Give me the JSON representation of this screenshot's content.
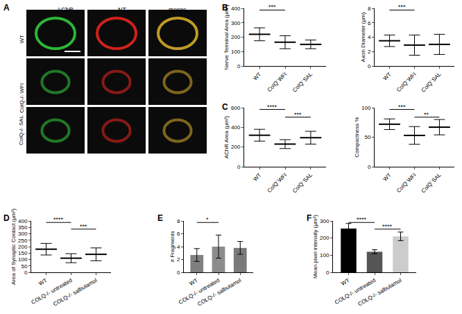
{
  "chart_data": [
    {
      "panel": "A",
      "type": "image",
      "columns": [
        "AChR",
        "NT",
        "merge"
      ],
      "rows": [
        "WT",
        "ColQ-/- WFI",
        "ColQ-/- SAL"
      ]
    },
    {
      "panel": "B",
      "type": "scatter",
      "ylabel": "Nerve Terminal Area (μm²)",
      "categories": [
        "WT",
        "ColQ⁻WFI",
        "ColQ⁻SAL"
      ],
      "values": [
        220,
        165,
        150
      ],
      "errors": [
        45,
        45,
        30
      ],
      "color": "#000000",
      "marker": "line-ew",
      "ylim": [
        0,
        400
      ],
      "yticks": [
        0,
        100,
        200,
        300,
        400
      ],
      "significance": [
        {
          "from": 0,
          "to": 1,
          "text": "***"
        }
      ]
    },
    {
      "type": "scatter",
      "ylabel": "Axon Diameter (μm)",
      "categories": [
        "WT",
        "ColQ⁻WFI",
        "ColQ⁻SAL"
      ],
      "values": [
        3.5,
        2.9,
        3.0
      ],
      "errors": [
        0.8,
        1.4,
        1.4
      ],
      "color": "#000000",
      "marker": "line-ew",
      "ylim": [
        0,
        8
      ],
      "yticks": [
        0,
        2,
        4,
        6,
        8
      ],
      "significance": [
        {
          "from": 0,
          "to": 1,
          "text": "***"
        }
      ]
    },
    {
      "panel": "C",
      "type": "scatter",
      "ylabel": "AChR Area (μm²)",
      "categories": [
        "WT",
        "ColQ⁻WFI",
        "ColQ⁻SAL"
      ],
      "values": [
        320,
        230,
        295
      ],
      "errors": [
        60,
        45,
        65
      ],
      "color": "#000000",
      "marker": "line-ew",
      "ylim": [
        0,
        600
      ],
      "yticks": [
        0,
        200,
        400,
        600
      ],
      "significance": [
        {
          "from": 0,
          "to": 1,
          "text": "****"
        },
        {
          "from": 1,
          "to": 2,
          "text": "***"
        }
      ]
    },
    {
      "type": "scatter",
      "ylabel": "Compactness %",
      "categories": [
        "WT",
        "ColQ⁻WFI",
        "ColQ⁻SAL"
      ],
      "values": [
        72,
        53,
        67
      ],
      "errors": [
        9,
        15,
        13
      ],
      "color": "#000000",
      "marker": "line-ew",
      "ylim": [
        0,
        100
      ],
      "yticks": [
        0,
        50,
        100
      ],
      "significance": [
        {
          "from": 0,
          "to": 1,
          "text": "***"
        },
        {
          "from": 1,
          "to": 2,
          "text": "**"
        }
      ]
    },
    {
      "panel": "D",
      "type": "scatter",
      "ylabel": "Area of Synaptic Contact (μm²)",
      "categories": [
        "WT",
        "COLQ-/- untreated",
        "COLQ-/- salbutamol"
      ],
      "values": [
        180,
        110,
        140
      ],
      "errors": [
        45,
        35,
        50
      ],
      "color": "#000000",
      "marker": "line-ew",
      "ylim": [
        0,
        400
      ],
      "yticks": [
        0,
        50,
        100,
        150,
        200,
        250,
        300,
        350,
        400
      ],
      "significance": [
        {
          "from": 0,
          "to": 1,
          "text": "****"
        },
        {
          "from": 1,
          "to": 2,
          "text": "***"
        }
      ]
    },
    {
      "panel": "E",
      "type": "bar",
      "ylabel": "# Fragments",
      "categories": [
        "WT",
        "COLQ-/- untreated",
        "COLQ-/- salbutamol"
      ],
      "values": [
        2.7,
        4.0,
        3.8
      ],
      "errors": [
        1.0,
        1.8,
        1.0
      ],
      "colors": [
        "#808080",
        "#8c8c8c",
        "#7a7a7a"
      ],
      "ylim": [
        0,
        8
      ],
      "yticks": [
        0,
        2,
        4,
        6,
        8
      ],
      "significance": [
        {
          "from": 0,
          "to": 1,
          "text": "*"
        }
      ]
    },
    {
      "panel": "F",
      "type": "bar",
      "ylabel": "Mean pixel intensity (μm²)",
      "categories": [
        "WT",
        "COLQ-/- untreated",
        "COLQ-/- salbutamol"
      ],
      "values": [
        255,
        120,
        210
      ],
      "errors": [
        30,
        12,
        25
      ],
      "colors": [
        "#000000",
        "#555555",
        "#cccccc"
      ],
      "ylim": [
        0,
        300
      ],
      "yticks": [
        0,
        100,
        200,
        300
      ],
      "significance": [
        {
          "from": 0,
          "to": 1,
          "text": "****"
        },
        {
          "from": 1,
          "to": 2,
          "text": "****"
        }
      ]
    }
  ]
}
